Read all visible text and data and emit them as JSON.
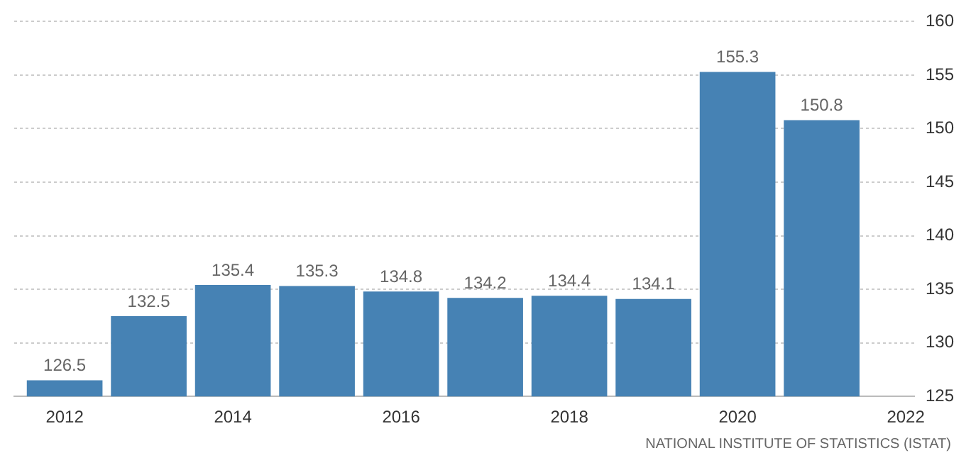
{
  "chart_data": {
    "type": "bar",
    "x": [
      2012,
      2013,
      2014,
      2015,
      2016,
      2017,
      2018,
      2019,
      2020,
      2021
    ],
    "values": [
      126.5,
      132.5,
      135.4,
      135.3,
      134.8,
      134.2,
      134.4,
      134.1,
      155.3,
      150.8
    ],
    "color": "#4682b4",
    "xlim": [
      2011.4,
      2022.1
    ],
    "xticks": [
      2012,
      2014,
      2016,
      2018,
      2020,
      2022
    ],
    "ylim": [
      125,
      160
    ],
    "yticks": [
      125,
      130,
      135,
      140,
      145,
      150,
      155,
      160
    ],
    "grid": "y",
    "data_labels": true,
    "annotations": [
      "NATIONAL INSTITUTE OF STATISTICS (ISTAT)"
    ]
  }
}
